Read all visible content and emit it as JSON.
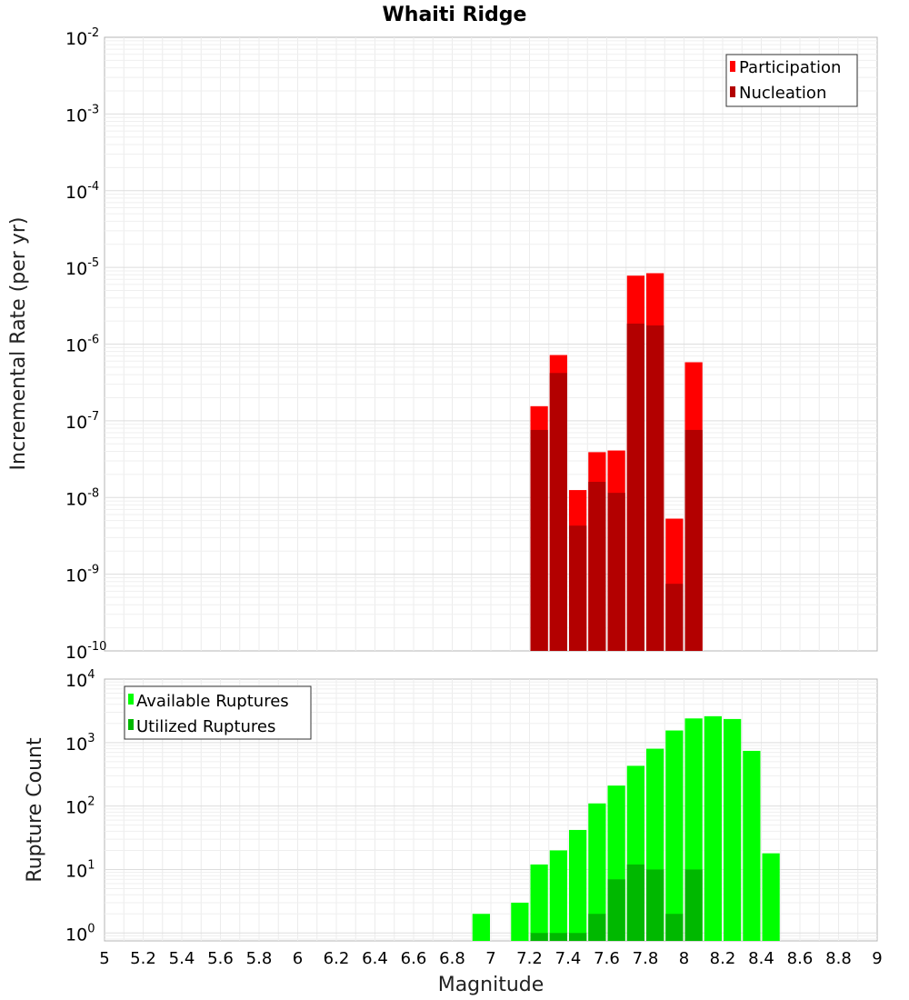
{
  "chart_data": [
    {
      "type": "bar",
      "title": "Whaiti Ridge",
      "xlabel": "",
      "ylabel": "Incremental Rate (per yr)",
      "yscale": "log",
      "ylim": [
        1e-10,
        0.01
      ],
      "xlim": [
        5,
        9
      ],
      "grid": true,
      "legend_position": "top-right",
      "y_ticks": [
        {
          "base": "10",
          "exp": "-10"
        },
        {
          "base": "10",
          "exp": "-9"
        },
        {
          "base": "10",
          "exp": "-8"
        },
        {
          "base": "10",
          "exp": "-7"
        },
        {
          "base": "10",
          "exp": "-6"
        },
        {
          "base": "10",
          "exp": "-5"
        },
        {
          "base": "10",
          "exp": "-4"
        },
        {
          "base": "10",
          "exp": "-3"
        },
        {
          "base": "10",
          "exp": "-2"
        }
      ],
      "x": [
        7.25,
        7.35,
        7.45,
        7.55,
        7.65,
        7.75,
        7.85,
        7.95,
        8.05
      ],
      "series": [
        {
          "name": "Participation",
          "color": "#ff0000",
          "values": [
            1.55e-07,
            7.2e-07,
            1.25e-08,
            3.9e-08,
            4.1e-08,
            7.8e-06,
            8.4e-06,
            5.3e-09,
            5.8e-07
          ]
        },
        {
          "name": "Nucleation",
          "color": "#b30000",
          "values": [
            7.6e-08,
            4.2e-07,
            4.3e-09,
            1.6e-08,
            1.15e-08,
            1.85e-06,
            1.75e-06,
            7.5e-10,
            7.6e-08
          ]
        }
      ]
    },
    {
      "type": "bar",
      "title": "",
      "xlabel": "Magnitude",
      "ylabel": "Rupture Count",
      "yscale": "log",
      "ylim": [
        0.75,
        10000
      ],
      "xlim": [
        5,
        9
      ],
      "grid": true,
      "legend_position": "top-left",
      "y_ticks": [
        {
          "base": "10",
          "exp": "0"
        },
        {
          "base": "10",
          "exp": "1"
        },
        {
          "base": "10",
          "exp": "2"
        },
        {
          "base": "10",
          "exp": "3"
        },
        {
          "base": "10",
          "exp": "4"
        }
      ],
      "x_tick_labels": [
        "5",
        "5.2",
        "5.4",
        "5.6",
        "5.8",
        "6",
        "6.2",
        "6.4",
        "6.6",
        "6.8",
        "7",
        "7.2",
        "7.4",
        "7.6",
        "7.8",
        "8",
        "8.2",
        "8.4",
        "8.6",
        "8.8",
        "9"
      ],
      "x": [
        6.95,
        7.15,
        7.25,
        7.35,
        7.45,
        7.55,
        7.65,
        7.75,
        7.85,
        7.95,
        8.05,
        8.15,
        8.25,
        8.35,
        8.45
      ],
      "series": [
        {
          "name": "Available Ruptures",
          "color": "#00ff00",
          "values": [
            2,
            3,
            12,
            20,
            42,
            110,
            210,
            430,
            800,
            1550,
            2400,
            2600,
            2350,
            740,
            18
          ]
        },
        {
          "name": "Utilized Ruptures",
          "color": "#00b800",
          "values": [
            0,
            0,
            1,
            1,
            1,
            2,
            7,
            12,
            10,
            2,
            10,
            0,
            0,
            0,
            0
          ]
        }
      ]
    }
  ]
}
